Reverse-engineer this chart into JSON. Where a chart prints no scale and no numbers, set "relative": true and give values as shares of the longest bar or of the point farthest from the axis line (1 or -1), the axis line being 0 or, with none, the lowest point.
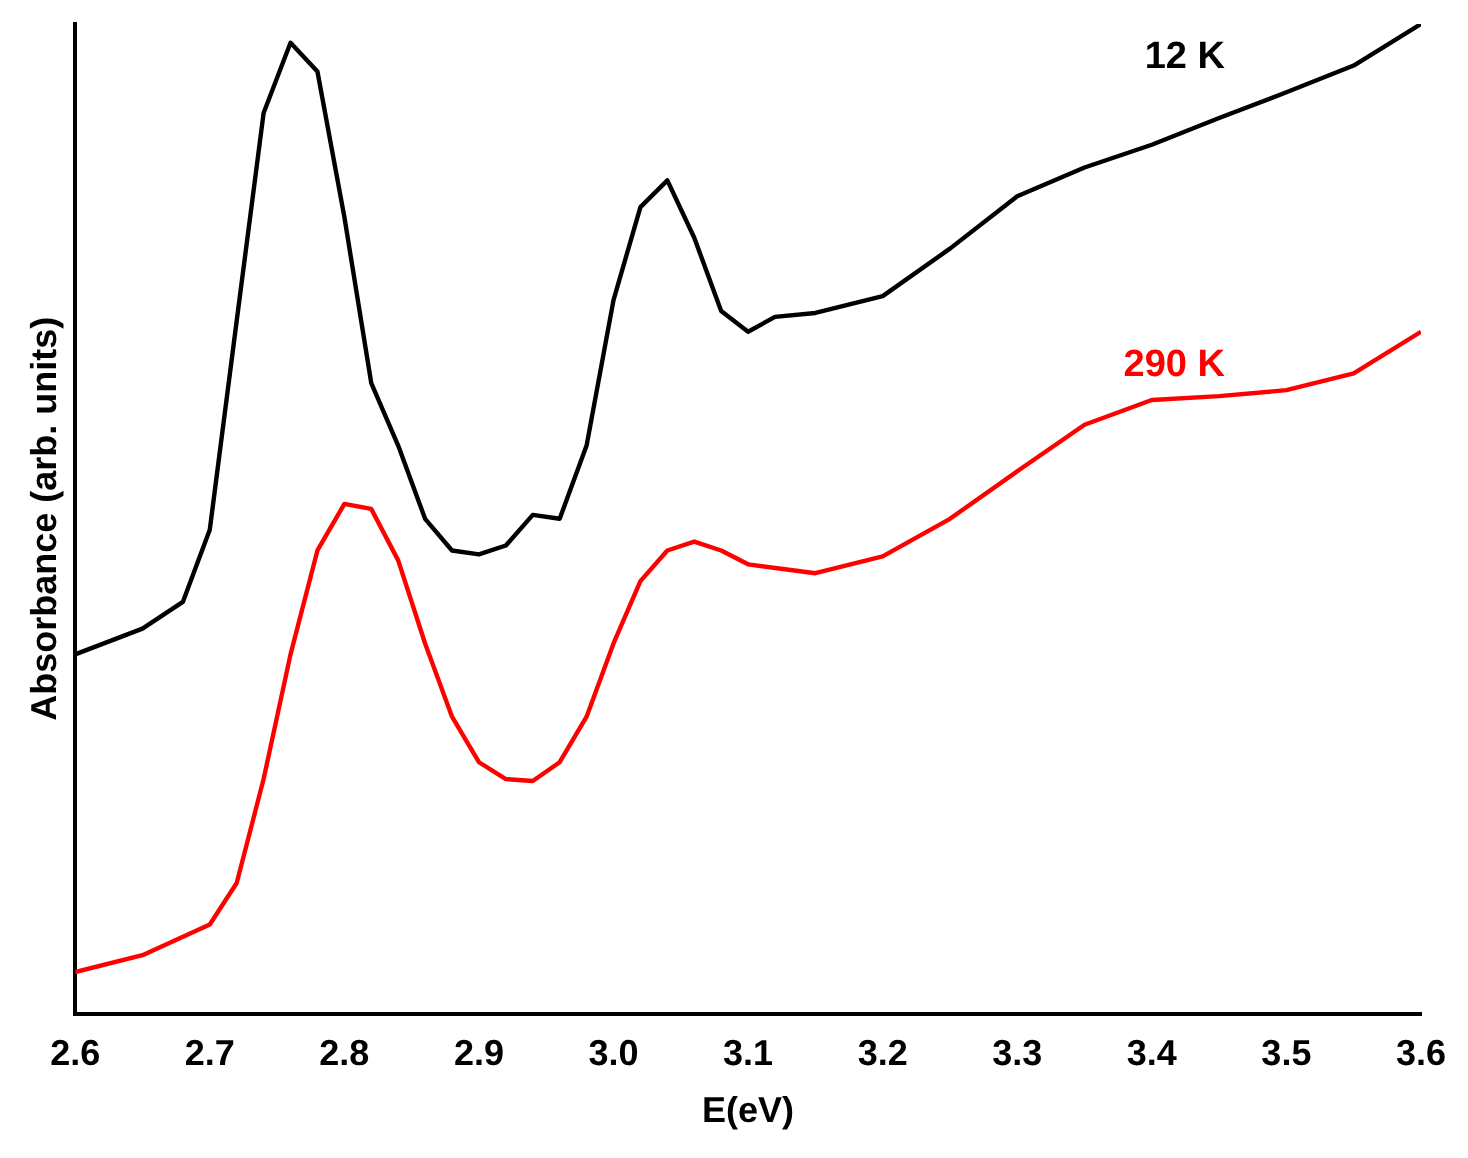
{
  "chart_data": {
    "type": "line",
    "xlabel": "E(eV)",
    "ylabel": "Absorbance (arb. units)",
    "relative": true,
    "legend": false,
    "grid": false,
    "marker": "none",
    "line_style": "solid",
    "xlim": [
      2.6,
      3.6
    ],
    "xticks": [
      {
        "value": 2.6,
        "label": "2.6"
      },
      {
        "value": 2.7,
        "label": "2.7"
      },
      {
        "value": 2.8,
        "label": "2.8"
      },
      {
        "value": 2.9,
        "label": "2.9"
      },
      {
        "value": 3.0,
        "label": "3.0"
      },
      {
        "value": 3.1,
        "label": "3.1"
      },
      {
        "value": 3.2,
        "label": "3.2"
      },
      {
        "value": 3.3,
        "label": "3.3"
      },
      {
        "value": 3.4,
        "label": "3.4"
      },
      {
        "value": 3.5,
        "label": "3.5"
      },
      {
        "value": 3.6,
        "label": "3.6"
      }
    ],
    "series": [
      {
        "name": "12 K",
        "color": "#000000",
        "x": [
          2.6,
          2.65,
          2.68,
          2.7,
          2.72,
          2.74,
          2.76,
          2.78,
          2.8,
          2.82,
          2.84,
          2.86,
          2.88,
          2.9,
          2.92,
          2.94,
          2.96,
          2.98,
          3.0,
          3.02,
          3.04,
          3.06,
          3.08,
          3.1,
          3.12,
          3.15,
          3.2,
          3.25,
          3.3,
          3.35,
          3.4,
          3.45,
          3.5,
          3.55,
          3.6
        ],
        "values": [
          0.363,
          0.389,
          0.416,
          0.489,
          0.7,
          0.91,
          0.981,
          0.952,
          0.805,
          0.637,
          0.574,
          0.5,
          0.468,
          0.464,
          0.473,
          0.504,
          0.5,
          0.574,
          0.721,
          0.815,
          0.842,
          0.784,
          0.71,
          0.689,
          0.704,
          0.708,
          0.725,
          0.773,
          0.826,
          0.855,
          0.878,
          0.905,
          0.931,
          0.958,
          1.0
        ]
      },
      {
        "name": "290 K",
        "color": "#ff0000",
        "x": [
          2.6,
          2.65,
          2.7,
          2.72,
          2.74,
          2.76,
          2.78,
          2.8,
          2.82,
          2.84,
          2.86,
          2.88,
          2.9,
          2.92,
          2.94,
          2.96,
          2.98,
          3.0,
          3.02,
          3.04,
          3.06,
          3.08,
          3.1,
          3.15,
          3.2,
          3.25,
          3.3,
          3.35,
          3.4,
          3.45,
          3.5,
          3.55,
          3.6
        ],
        "values": [
          0.042,
          0.059,
          0.09,
          0.132,
          0.237,
          0.363,
          0.468,
          0.515,
          0.51,
          0.458,
          0.374,
          0.3,
          0.254,
          0.237,
          0.235,
          0.254,
          0.3,
          0.374,
          0.437,
          0.468,
          0.477,
          0.468,
          0.454,
          0.445,
          0.462,
          0.5,
          0.548,
          0.595,
          0.62,
          0.624,
          0.63,
          0.647,
          0.689
        ]
      }
    ]
  }
}
